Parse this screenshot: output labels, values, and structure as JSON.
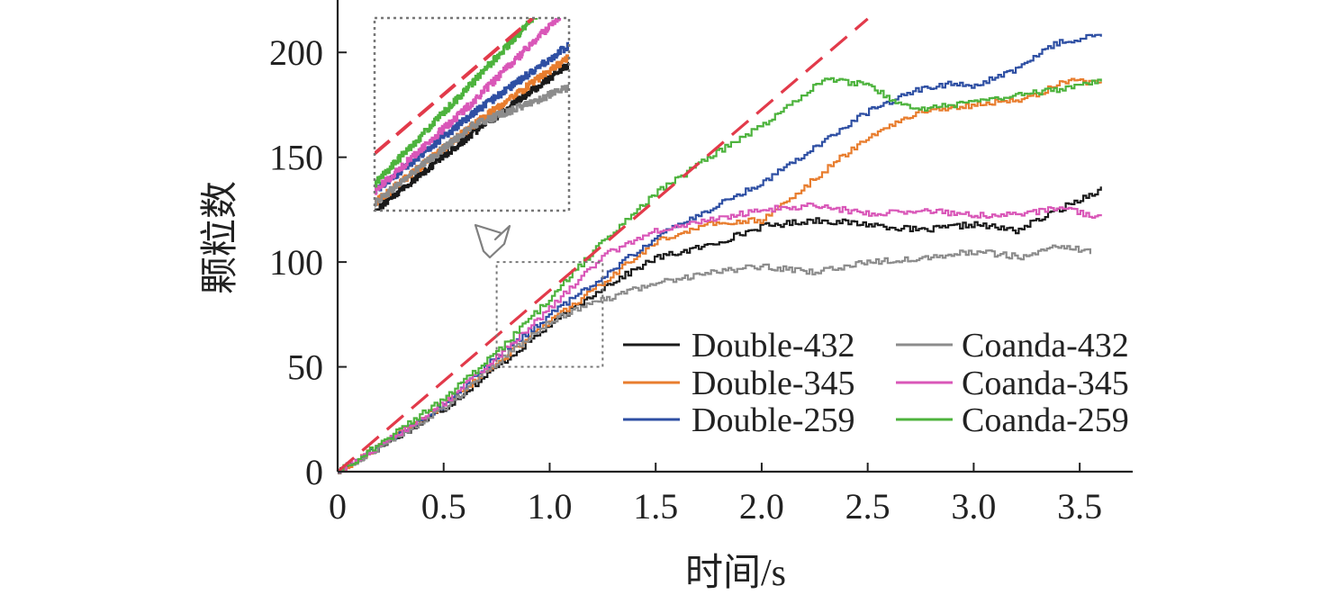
{
  "chart_data": {
    "type": "line",
    "xlabel": "时间/s",
    "ylabel": "颗粒数",
    "xlim": [
      0,
      3.75
    ],
    "ylim": [
      0,
      225
    ],
    "x_ticks": [
      0,
      0.5,
      1.0,
      1.5,
      2.0,
      2.5,
      3.0,
      3.5
    ],
    "x_tick_labels": [
      "0",
      "0.5",
      "1.0",
      "1.5",
      "2.0",
      "2.5",
      "3.0",
      "3.5"
    ],
    "y_ticks": [
      0,
      50,
      100,
      150,
      200
    ],
    "y_tick_labels": [
      "0",
      "50",
      "100",
      "150",
      "200"
    ],
    "grid": false,
    "legend_position": "lower-right",
    "series": [
      {
        "name": "Double-432",
        "color": "#1a1a1a",
        "points": [
          [
            0,
            0
          ],
          [
            0.25,
            15
          ],
          [
            0.5,
            30
          ],
          [
            0.75,
            50
          ],
          [
            1.0,
            70
          ],
          [
            1.25,
            88
          ],
          [
            1.5,
            102
          ],
          [
            1.75,
            108
          ],
          [
            2.0,
            117
          ],
          [
            2.25,
            120
          ],
          [
            2.5,
            118
          ],
          [
            2.75,
            115
          ],
          [
            3.0,
            118
          ],
          [
            3.2,
            115
          ],
          [
            3.4,
            125
          ],
          [
            3.6,
            135
          ]
        ]
      },
      {
        "name": "Double-345",
        "color": "#e87d2e",
        "points": [
          [
            0,
            0
          ],
          [
            0.25,
            16
          ],
          [
            0.5,
            32
          ],
          [
            0.75,
            52
          ],
          [
            1.0,
            72
          ],
          [
            1.25,
            90
          ],
          [
            1.5,
            110
          ],
          [
            1.75,
            118
          ],
          [
            2.0,
            120
          ],
          [
            2.25,
            140
          ],
          [
            2.5,
            160
          ],
          [
            2.75,
            172
          ],
          [
            3.0,
            175
          ],
          [
            3.25,
            178
          ],
          [
            3.45,
            187
          ],
          [
            3.6,
            185
          ]
        ]
      },
      {
        "name": "Double-259",
        "color": "#2e4fa3",
        "points": [
          [
            0,
            0
          ],
          [
            0.25,
            16
          ],
          [
            0.5,
            32
          ],
          [
            0.75,
            55
          ],
          [
            1.0,
            75
          ],
          [
            1.25,
            93
          ],
          [
            1.5,
            112
          ],
          [
            1.75,
            125
          ],
          [
            2.0,
            138
          ],
          [
            2.25,
            155
          ],
          [
            2.5,
            172
          ],
          [
            2.75,
            183
          ],
          [
            2.9,
            185
          ],
          [
            3.0,
            184
          ],
          [
            3.2,
            192
          ],
          [
            3.4,
            205
          ],
          [
            3.6,
            208
          ]
        ]
      },
      {
        "name": "Coanda-432",
        "color": "#8c8c8c",
        "points": [
          [
            0,
            0
          ],
          [
            0.25,
            15
          ],
          [
            0.5,
            30
          ],
          [
            0.75,
            52
          ],
          [
            1.0,
            72
          ],
          [
            1.25,
            82
          ],
          [
            1.5,
            90
          ],
          [
            1.75,
            95
          ],
          [
            2.0,
            98
          ],
          [
            2.25,
            95
          ],
          [
            2.5,
            100
          ],
          [
            2.75,
            102
          ],
          [
            3.0,
            105
          ],
          [
            3.25,
            102
          ],
          [
            3.4,
            108
          ],
          [
            3.55,
            105
          ]
        ]
      },
      {
        "name": "Coanda-345",
        "color": "#d957b8",
        "points": [
          [
            0,
            0
          ],
          [
            0.25,
            16
          ],
          [
            0.5,
            33
          ],
          [
            0.75,
            55
          ],
          [
            1.0,
            78
          ],
          [
            1.25,
            103
          ],
          [
            1.5,
            115
          ],
          [
            1.75,
            120
          ],
          [
            2.0,
            125
          ],
          [
            2.25,
            127
          ],
          [
            2.5,
            123
          ],
          [
            2.75,
            125
          ],
          [
            3.0,
            122
          ],
          [
            3.25,
            123
          ],
          [
            3.4,
            126
          ],
          [
            3.6,
            121
          ]
        ]
      },
      {
        "name": "Coanda-259",
        "color": "#4db33d",
        "points": [
          [
            0,
            0
          ],
          [
            0.25,
            17
          ],
          [
            0.5,
            35
          ],
          [
            0.75,
            57
          ],
          [
            1.0,
            83
          ],
          [
            1.25,
            110
          ],
          [
            1.5,
            133
          ],
          [
            1.75,
            150
          ],
          [
            2.0,
            165
          ],
          [
            2.3,
            188
          ],
          [
            2.5,
            184
          ],
          [
            2.65,
            175
          ],
          [
            2.75,
            173
          ],
          [
            3.0,
            176
          ],
          [
            3.25,
            180
          ],
          [
            3.6,
            186
          ]
        ]
      },
      {
        "name": "",
        "color": "#e23a4a",
        "dashed": true,
        "points": [
          [
            0,
            0
          ],
          [
            2.5,
            216
          ]
        ]
      }
    ],
    "inset": {
      "xlim": [
        0.75,
        1.25
      ],
      "ylim": [
        50,
        100
      ],
      "shown_series": [
        "Double-432",
        "Double-345",
        "Double-259",
        "Coanda-432",
        "Coanda-345",
        "Coanda-259",
        ""
      ]
    }
  }
}
